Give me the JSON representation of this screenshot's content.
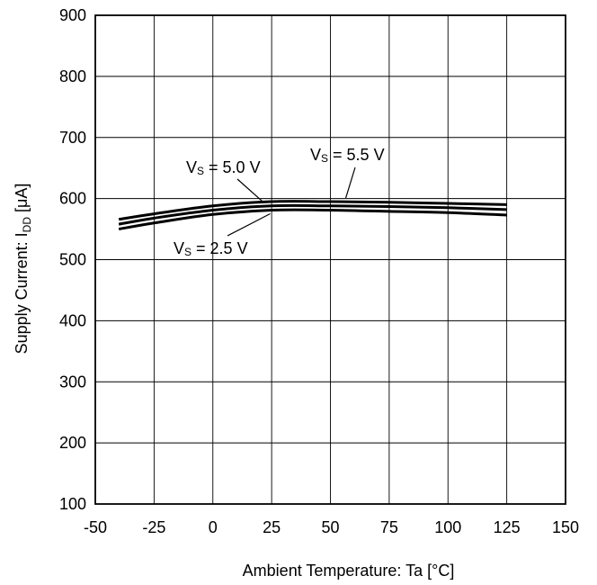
{
  "chart_data": {
    "type": "line",
    "xlabel": "Ambient Temperature: Ta [°C]",
    "ylabel": {
      "prefix": "Supply Current: I",
      "sub": "DD",
      "suffix": " [μA]"
    },
    "xlim": [
      -50,
      150
    ],
    "ylim": [
      100,
      900
    ],
    "xticks": [
      -50,
      -25,
      0,
      25,
      50,
      75,
      100,
      125,
      150
    ],
    "yticks": [
      100,
      200,
      300,
      400,
      500,
      600,
      700,
      800,
      900
    ],
    "grid": true,
    "x": [
      -40,
      -25,
      0,
      25,
      50,
      75,
      100,
      125
    ],
    "series": [
      {
        "name": "Vs = 5.5 V",
        "values": [
          566,
          575,
          588,
          595,
          595,
          594,
          592,
          590
        ]
      },
      {
        "name": "Vs = 5.0 V",
        "values": [
          558,
          568,
          581,
          588,
          588,
          587,
          585,
          582
        ]
      },
      {
        "name": "Vs = 2.5 V",
        "values": [
          550,
          560,
          574,
          581,
          581,
          579,
          577,
          573
        ]
      }
    ],
    "annotations": [
      {
        "series": 1,
        "main": "V",
        "sub": "S",
        "rest": " = 5.0 V",
        "target": [
          20,
          588
        ]
      },
      {
        "series": 0,
        "main": "V",
        "sub": "S",
        "rest": " = 5.5 V",
        "target": [
          55,
          595
        ]
      },
      {
        "series": 2,
        "main": "V",
        "sub": "S",
        "rest": " = 2.5 V",
        "target": [
          24,
          581
        ]
      }
    ],
    "line_color": "#000000",
    "grid_color": "#000000"
  }
}
